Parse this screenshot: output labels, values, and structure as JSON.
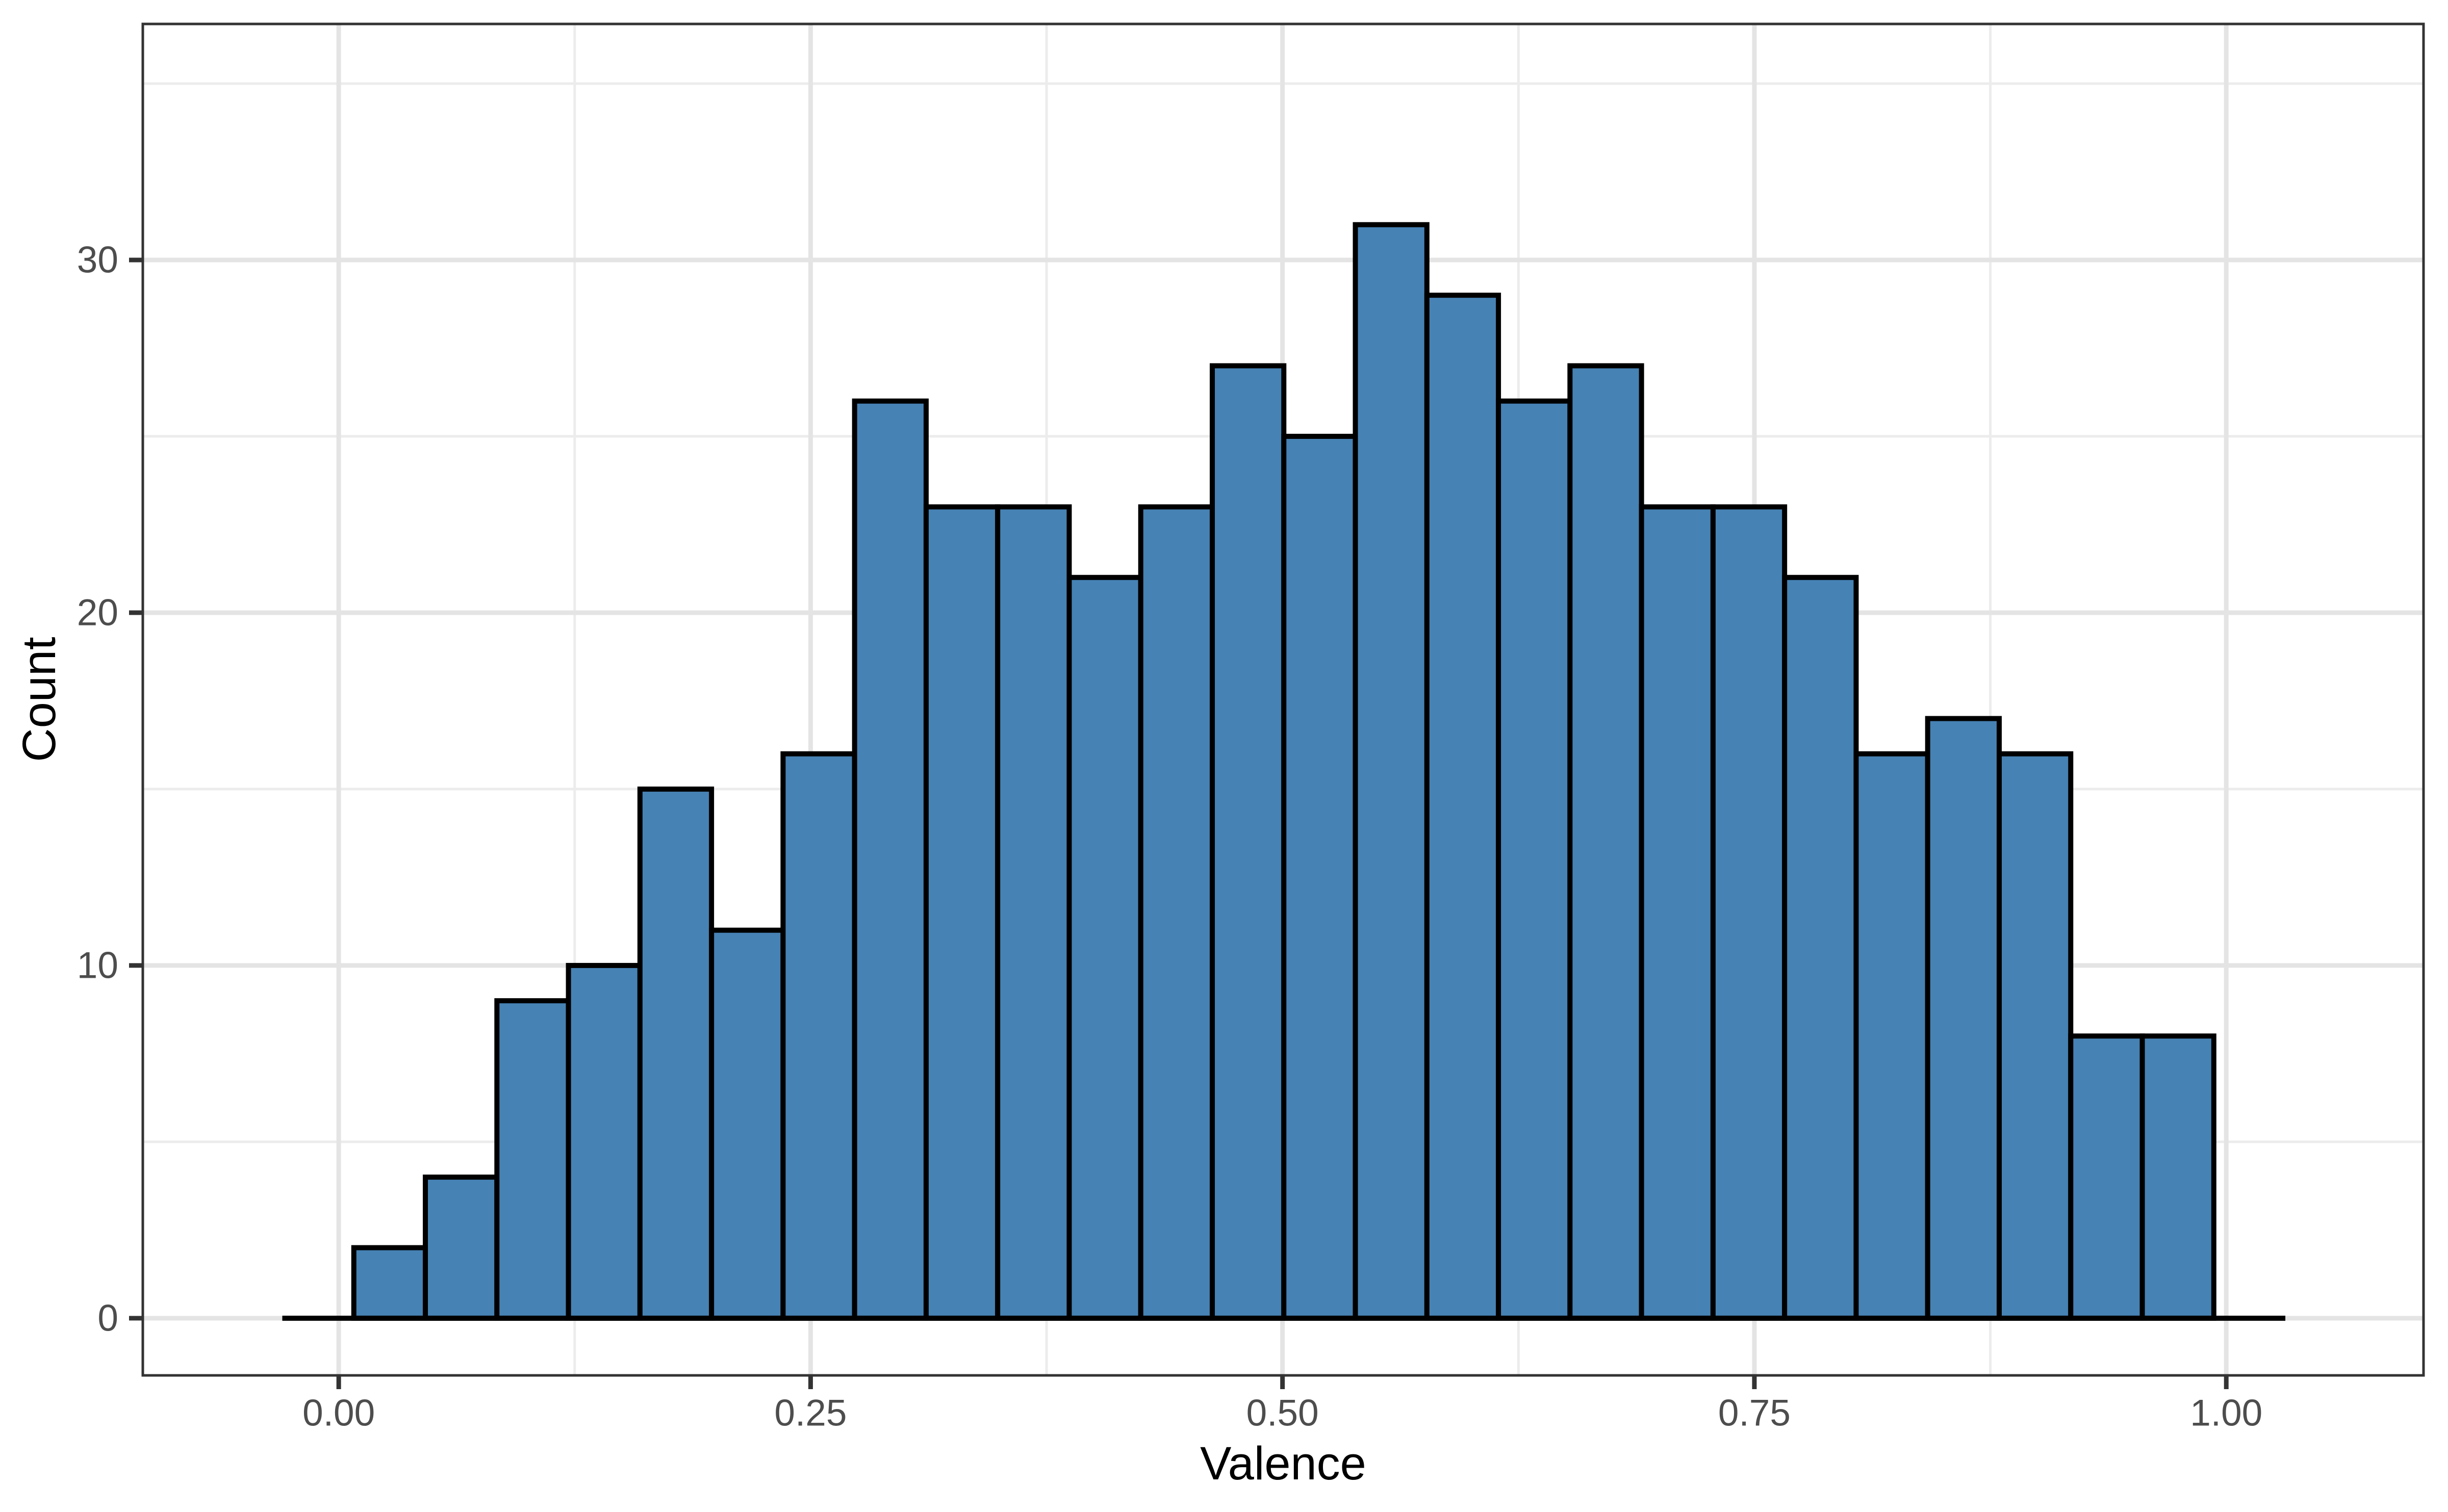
{
  "figure": {
    "background": "#FFFFFF"
  },
  "chart_data": {
    "type": "histogram",
    "title": "",
    "xlabel": "Valence",
    "ylabel": "Count",
    "bin_start": 0.008,
    "bin_width": 0.0379,
    "counts": [
      2,
      4,
      9,
      10,
      15,
      11,
      16,
      26,
      23,
      23,
      21,
      23,
      27,
      25,
      31,
      29,
      26,
      27,
      23,
      23,
      21,
      16,
      17,
      16,
      8,
      8
    ],
    "n_bins": 26,
    "max_count": 31,
    "x_major_ticks": [
      0,
      0.25,
      0.5,
      0.75,
      1.0
    ],
    "x_tick_labels": [
      "0.00",
      "0.25",
      "0.50",
      "0.75",
      "1.00"
    ],
    "x_minor_gridlines": [
      0.125,
      0.375,
      0.625,
      0.875
    ],
    "y_major_ticks": [
      0,
      10,
      20,
      30
    ],
    "y_tick_labels": [
      "0",
      "10",
      "20",
      "30"
    ],
    "y_minor_gridlines": [
      5,
      15,
      25,
      35
    ],
    "x_domain": [
      -0.1038,
      1.1045
    ],
    "y_domain": [
      -1.62,
      36.69
    ],
    "baseline_extension_bins": 1,
    "legend": "none",
    "grid": "on",
    "colors": {
      "bar_fill": "#4682B4",
      "bar_stroke": "#000000",
      "baseline": "#000000",
      "grid_major": "#E4E4E4",
      "grid_minor": "#ECECEC",
      "panel_border": "#333333",
      "tick_mark": "#333333",
      "tick_label": "#4D4D4D",
      "axis_title": "#000000",
      "panel_background": "#FFFFFF"
    }
  }
}
